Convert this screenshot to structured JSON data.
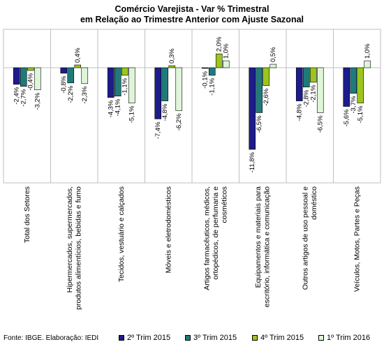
{
  "title_line1": "Comércio Varejista - Var % Trimestral",
  "title_line2": "em Relação ao Trimestre Anterior com Ajuste Sazonal",
  "source": "Fonte: IBGE. Elaboração: IEDI",
  "colors": [
    "#1c1c8c",
    "#1f7b7b",
    "#9cc61f",
    "#dff5d8"
  ],
  "chart_data": {
    "type": "bar",
    "categories": [
      [
        "Total dos Setores"
      ],
      [
        "Hipermercados, supermercados,",
        "produtos alimentícios, bebidas e fumo"
      ],
      [
        "Tecidos, vestuário e calçados"
      ],
      [
        "Móveis e eletrodomésticos"
      ],
      [
        "Artigos farmacêuticos, médicos,",
        "ortopédicos, de perfumaria e",
        "cosméticos"
      ],
      [
        "Equipamentos e materiais para",
        "escritório, informática e comunicação"
      ],
      [
        "Outros artigos de uso pessoal e",
        "doméstico"
      ],
      [
        "Veículos, Motos, Partes e Peças"
      ]
    ],
    "series": [
      {
        "name": "2º Trim 2015",
        "values": [
          -2.4,
          -0.8,
          -4.3,
          -7.4,
          -0.1,
          -11.8,
          -4.8,
          -5.6
        ]
      },
      {
        "name": "3º Trim 2015",
        "values": [
          -2.7,
          -2.2,
          -4.1,
          -4.8,
          -1.1,
          -6.5,
          -2.8,
          -3.7
        ]
      },
      {
        "name": "4º Trim 2015",
        "values": [
          -0.4,
          0.4,
          -1.1,
          0.3,
          2.0,
          -2.6,
          -2.1,
          -5.1
        ]
      },
      {
        "name": "1º Trim 2016",
        "values": [
          -3.2,
          -2.3,
          -5.1,
          -6.2,
          1.0,
          0.5,
          -6.5,
          1.0
        ]
      }
    ],
    "value_labels": [
      [
        "-2,4%",
        "-0,8%",
        "-4,3%",
        "-7,4%",
        "-0,1%",
        "-11,8%",
        "-4,8%",
        "-5,6%"
      ],
      [
        "-2,7%",
        "-2,2%",
        "-4,1%",
        "-4,8%",
        "-1,1%",
        "-6,5%",
        "-2,8%",
        "-3,7%"
      ],
      [
        "-0,4%",
        "0,4%",
        "-1,1%",
        "0,3%",
        "2,0%",
        "-2,6%",
        "-2,1%",
        "-5,1%"
      ],
      [
        "-3,2%",
        "-2,3%",
        "-5,1%",
        "-6,2%",
        "1,0%",
        "0,5%",
        "-6,5%",
        "1,0%"
      ]
    ],
    "ylim": [
      -12.5,
      3.2
    ],
    "grid": false,
    "legend_position": "bottom-right"
  }
}
